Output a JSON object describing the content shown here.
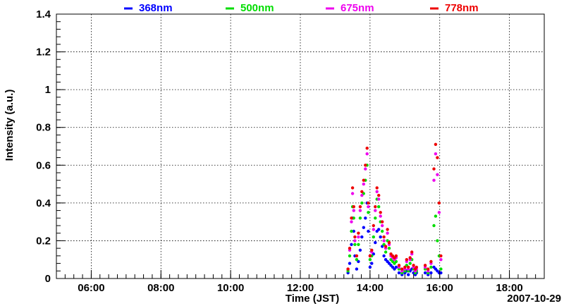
{
  "chart_data": {
    "type": "scatter",
    "title": "",
    "xlabel": "Time (JST)",
    "ylabel": "Intensity (a.u.)",
    "date_label": "2007-10-29",
    "xlim": [
      "05:00",
      "19:00"
    ],
    "ylim": [
      0,
      1.4
    ],
    "x_ticks": [
      "06:00",
      "08:00",
      "10:00",
      "12:00",
      "14:00",
      "16:00",
      "18:00"
    ],
    "y_ticks": [
      "0",
      "0.2",
      "0.4",
      "0.6",
      "0.8",
      "1",
      "1.2",
      "1.4"
    ],
    "grid": true,
    "legend_position": "top",
    "series": [
      {
        "name": "368nm",
        "color": "#0000ff",
        "points": [
          [
            "13:22",
            0.03
          ],
          [
            "13:25",
            0.08
          ],
          [
            "13:28",
            0.18
          ],
          [
            "13:30",
            0.32
          ],
          [
            "13:32",
            0.25
          ],
          [
            "13:34",
            0.12
          ],
          [
            "13:37",
            0.05
          ],
          [
            "13:40",
            0.09
          ],
          [
            "13:43",
            0.15
          ],
          [
            "13:46",
            0.22
          ],
          [
            "13:49",
            0.27
          ],
          [
            "13:52",
            0.32
          ],
          [
            "13:55",
            0.4
          ],
          [
            "13:57",
            0.25
          ],
          [
            "14:00",
            0.06
          ],
          [
            "14:03",
            0.08
          ],
          [
            "14:06",
            0.13
          ],
          [
            "14:09",
            0.19
          ],
          [
            "14:12",
            0.25
          ],
          [
            "14:15",
            0.26
          ],
          [
            "14:18",
            0.22
          ],
          [
            "14:21",
            0.17
          ],
          [
            "14:24",
            0.12
          ],
          [
            "14:27",
            0.1
          ],
          [
            "14:30",
            0.09
          ],
          [
            "14:33",
            0.08
          ],
          [
            "14:36",
            0.07
          ],
          [
            "14:39",
            0.06
          ],
          [
            "14:42",
            0.05
          ],
          [
            "14:45",
            0.06
          ],
          [
            "14:50",
            0.03
          ],
          [
            "14:55",
            0.02
          ],
          [
            "15:00",
            0.03
          ],
          [
            "15:03",
            0.04
          ],
          [
            "15:06",
            0.02
          ],
          [
            "15:09",
            0.04
          ],
          [
            "15:12",
            0.05
          ],
          [
            "15:15",
            0.03
          ],
          [
            "15:18",
            0.02
          ],
          [
            "15:20",
            0.03
          ],
          [
            "15:35",
            0.03
          ],
          [
            "15:40",
            0.02
          ],
          [
            "15:45",
            0.03
          ],
          [
            "15:50",
            0.06
          ],
          [
            "15:53",
            0.05
          ],
          [
            "15:56",
            0.04
          ],
          [
            "15:59",
            0.03
          ],
          [
            "16:02",
            0.03
          ]
        ]
      },
      {
        "name": "500nm",
        "color": "#00dd00",
        "points": [
          [
            "13:22",
            0.04
          ],
          [
            "13:25",
            0.12
          ],
          [
            "13:28",
            0.25
          ],
          [
            "13:30",
            0.38
          ],
          [
            "13:32",
            0.32
          ],
          [
            "13:34",
            0.18
          ],
          [
            "13:37",
            0.1
          ],
          [
            "13:40",
            0.18
          ],
          [
            "13:43",
            0.32
          ],
          [
            "13:46",
            0.4
          ],
          [
            "13:49",
            0.45
          ],
          [
            "13:52",
            0.52
          ],
          [
            "13:55",
            0.6
          ],
          [
            "13:57",
            0.35
          ],
          [
            "14:00",
            0.1
          ],
          [
            "14:03",
            0.12
          ],
          [
            "14:06",
            0.22
          ],
          [
            "14:09",
            0.32
          ],
          [
            "14:12",
            0.42
          ],
          [
            "14:15",
            0.38
          ],
          [
            "14:18",
            0.3
          ],
          [
            "14:21",
            0.25
          ],
          [
            "14:24",
            0.18
          ],
          [
            "14:27",
            0.14
          ],
          [
            "14:30",
            0.2
          ],
          [
            "14:33",
            0.16
          ],
          [
            "14:36",
            0.1
          ],
          [
            "14:39",
            0.09
          ],
          [
            "14:42",
            0.08
          ],
          [
            "14:45",
            0.09
          ],
          [
            "14:50",
            0.05
          ],
          [
            "14:55",
            0.03
          ],
          [
            "15:00",
            0.04
          ],
          [
            "15:03",
            0.07
          ],
          [
            "15:06",
            0.04
          ],
          [
            "15:09",
            0.08
          ],
          [
            "15:12",
            0.1
          ],
          [
            "15:15",
            0.05
          ],
          [
            "15:18",
            0.03
          ],
          [
            "15:20",
            0.04
          ],
          [
            "15:35",
            0.05
          ],
          [
            "15:40",
            0.03
          ],
          [
            "15:45",
            0.06
          ],
          [
            "15:50",
            0.28
          ],
          [
            "15:53",
            0.33
          ],
          [
            "15:56",
            0.2
          ],
          [
            "15:59",
            0.12
          ],
          [
            "16:02",
            0.05
          ]
        ]
      },
      {
        "name": "675nm",
        "color": "#ee00ee",
        "points": [
          [
            "13:22",
            0.05
          ],
          [
            "13:25",
            0.15
          ],
          [
            "13:28",
            0.3
          ],
          [
            "13:30",
            0.45
          ],
          [
            "13:32",
            0.36
          ],
          [
            "13:34",
            0.2
          ],
          [
            "13:37",
            0.12
          ],
          [
            "13:40",
            0.22
          ],
          [
            "13:43",
            0.36
          ],
          [
            "13:46",
            0.44
          ],
          [
            "13:49",
            0.5
          ],
          [
            "13:52",
            0.58
          ],
          [
            "13:55",
            0.66
          ],
          [
            "13:57",
            0.38
          ],
          [
            "14:00",
            0.12
          ],
          [
            "14:03",
            0.14
          ],
          [
            "14:06",
            0.26
          ],
          [
            "14:09",
            0.36
          ],
          [
            "14:12",
            0.46
          ],
          [
            "14:15",
            0.42
          ],
          [
            "14:18",
            0.33
          ],
          [
            "14:21",
            0.28
          ],
          [
            "14:24",
            0.2
          ],
          [
            "14:27",
            0.16
          ],
          [
            "14:30",
            0.24
          ],
          [
            "14:33",
            0.18
          ],
          [
            "14:36",
            0.12
          ],
          [
            "14:39",
            0.11
          ],
          [
            "14:42",
            0.1
          ],
          [
            "14:45",
            0.11
          ],
          [
            "14:50",
            0.06
          ],
          [
            "14:55",
            0.04
          ],
          [
            "15:00",
            0.05
          ],
          [
            "15:03",
            0.09
          ],
          [
            "15:06",
            0.05
          ],
          [
            "15:09",
            0.1
          ],
          [
            "15:12",
            0.13
          ],
          [
            "15:15",
            0.06
          ],
          [
            "15:18",
            0.04
          ],
          [
            "15:20",
            0.05
          ],
          [
            "15:35",
            0.06
          ],
          [
            "15:40",
            0.04
          ],
          [
            "15:45",
            0.08
          ],
          [
            "15:50",
            0.52
          ],
          [
            "15:53",
            0.66
          ],
          [
            "15:56",
            0.55
          ],
          [
            "15:59",
            0.35
          ],
          [
            "16:02",
            0.1
          ]
        ]
      },
      {
        "name": "778nm",
        "color": "#ee0000",
        "points": [
          [
            "13:22",
            0.05
          ],
          [
            "13:25",
            0.16
          ],
          [
            "13:28",
            0.32
          ],
          [
            "13:30",
            0.48
          ],
          [
            "13:32",
            0.38
          ],
          [
            "13:34",
            0.22
          ],
          [
            "13:37",
            0.12
          ],
          [
            "13:40",
            0.24
          ],
          [
            "13:43",
            0.38
          ],
          [
            "13:46",
            0.46
          ],
          [
            "13:49",
            0.52
          ],
          [
            "13:52",
            0.6
          ],
          [
            "13:55",
            0.69
          ],
          [
            "13:57",
            0.4
          ],
          [
            "14:00",
            0.12
          ],
          [
            "14:03",
            0.15
          ],
          [
            "14:06",
            0.28
          ],
          [
            "14:09",
            0.38
          ],
          [
            "14:12",
            0.48
          ],
          [
            "14:15",
            0.44
          ],
          [
            "14:18",
            0.35
          ],
          [
            "14:21",
            0.3
          ],
          [
            "14:24",
            0.22
          ],
          [
            "14:27",
            0.17
          ],
          [
            "14:30",
            0.26
          ],
          [
            "14:33",
            0.19
          ],
          [
            "14:36",
            0.13
          ],
          [
            "14:39",
            0.12
          ],
          [
            "14:42",
            0.11
          ],
          [
            "14:45",
            0.12
          ],
          [
            "14:50",
            0.07
          ],
          [
            "14:55",
            0.05
          ],
          [
            "15:00",
            0.06
          ],
          [
            "15:03",
            0.1
          ],
          [
            "15:06",
            0.06
          ],
          [
            "15:09",
            0.11
          ],
          [
            "15:12",
            0.14
          ],
          [
            "15:15",
            0.07
          ],
          [
            "15:18",
            0.05
          ],
          [
            "15:20",
            0.06
          ],
          [
            "15:35",
            0.07
          ],
          [
            "15:40",
            0.05
          ],
          [
            "15:45",
            0.09
          ],
          [
            "15:50",
            0.58
          ],
          [
            "15:53",
            0.71
          ],
          [
            "15:56",
            0.64
          ],
          [
            "15:59",
            0.4
          ],
          [
            "16:02",
            0.12
          ]
        ]
      }
    ]
  }
}
